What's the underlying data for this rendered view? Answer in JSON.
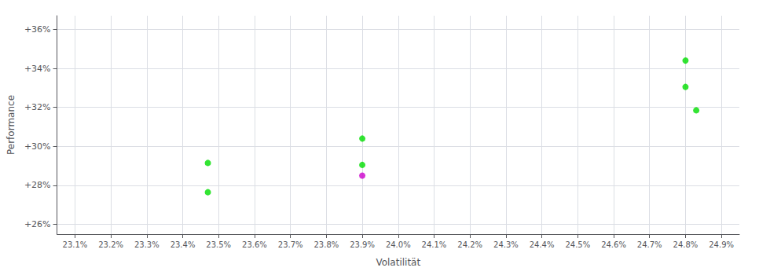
{
  "chart_data": {
    "type": "scatter",
    "xlabel": "Volatilität",
    "ylabel": "Performance",
    "x": [
      23.47,
      23.47,
      23.9,
      23.9,
      23.9,
      24.8,
      24.8,
      24.83
    ],
    "values": [
      29.15,
      27.65,
      30.4,
      29.05,
      28.5,
      34.4,
      33.05,
      31.85
    ],
    "colors": [
      "#00dd00",
      "#00dd00",
      "#00dd00",
      "#00dd00",
      "#cc00cc",
      "#00dd00",
      "#00dd00",
      "#00dd00"
    ],
    "xlim": [
      23.05,
      24.95
    ],
    "ylim": [
      25.5,
      36.7
    ],
    "xticks": [
      {
        "value": 23.1,
        "label": "23.1%"
      },
      {
        "value": 23.2,
        "label": "23.2%"
      },
      {
        "value": 23.3,
        "label": "23.3%"
      },
      {
        "value": 23.4,
        "label": "23.4%"
      },
      {
        "value": 23.5,
        "label": "23.5%"
      },
      {
        "value": 23.6,
        "label": "23.6%"
      },
      {
        "value": 23.7,
        "label": "23.7%"
      },
      {
        "value": 23.8,
        "label": "23.8%"
      },
      {
        "value": 23.9,
        "label": "23.9%"
      },
      {
        "value": 24.0,
        "label": "24.0%"
      },
      {
        "value": 24.1,
        "label": "24.1%"
      },
      {
        "value": 24.2,
        "label": "24.2%"
      },
      {
        "value": 24.3,
        "label": "24.3%"
      },
      {
        "value": 24.4,
        "label": "24.4%"
      },
      {
        "value": 24.5,
        "label": "24.5%"
      },
      {
        "value": 24.6,
        "label": "24.6%"
      },
      {
        "value": 24.7,
        "label": "24.7%"
      },
      {
        "value": 24.8,
        "label": "24.8%"
      },
      {
        "value": 24.9,
        "label": "24.9%"
      }
    ],
    "yticks": [
      {
        "value": 26,
        "label": "+26%"
      },
      {
        "value": 28,
        "label": "+28%"
      },
      {
        "value": 30,
        "label": "+30%"
      },
      {
        "value": 32,
        "label": "+32%"
      },
      {
        "value": 34,
        "label": "+34%"
      },
      {
        "value": 36,
        "label": "+36%"
      }
    ],
    "grid": true
  }
}
